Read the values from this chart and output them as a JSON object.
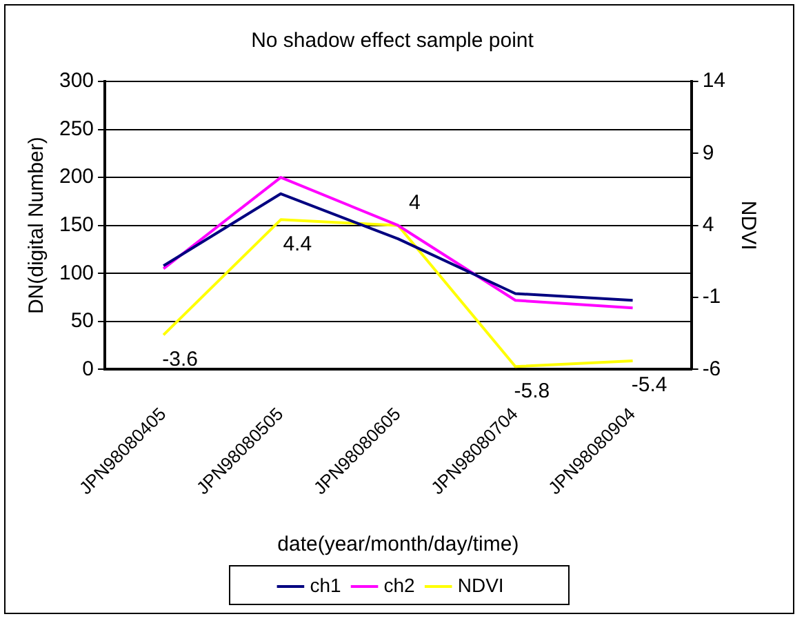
{
  "chart_data": {
    "type": "line",
    "title": "No shadow effect sample point",
    "xlabel": "date(year/month/day/time)",
    "ylabel": "DN(digital Number)",
    "y2label": "NDVI",
    "categories": [
      "JPN98080405",
      "JPN98080505",
      "JPN98080605",
      "JPN98080704",
      "JPN98080904"
    ],
    "series": [
      {
        "name": "ch1",
        "color": "#000080",
        "values": [
          108,
          183,
          136,
          79,
          72
        ]
      },
      {
        "name": "ch2",
        "color": "#ff00ff",
        "values": [
          105,
          200,
          150,
          72,
          64
        ]
      },
      {
        "name": "NDVI",
        "color": "#ffff00",
        "axis": "y2",
        "values": [
          -3.6,
          4.4,
          4,
          -5.8,
          -5.4
        ],
        "data_labels": true
      }
    ],
    "ylim": [
      0,
      300
    ],
    "yticks": [
      0,
      50,
      100,
      150,
      200,
      250,
      300
    ],
    "y2lim": [
      -6,
      14
    ],
    "y2ticks": [
      -6,
      -1,
      4,
      9,
      14
    ],
    "grid": "y",
    "legend": "bottom",
    "marker": "none",
    "line_style": "solid"
  }
}
